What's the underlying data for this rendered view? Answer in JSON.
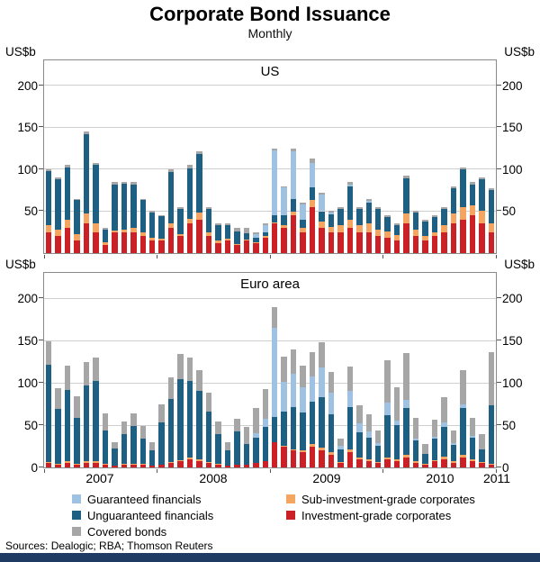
{
  "title": "Corporate Bond Issuance",
  "subtitle": "Monthly",
  "axis_unit": "US$b",
  "source_note": "Sources: Dealogic; RBA; Thomson Reuters",
  "x_tick_labels": [
    "2007",
    "2008",
    "2009",
    "2010",
    "2011"
  ],
  "colors": {
    "guaranteed_financials": "#9fc1e2",
    "unguaranteed_financials": "#1d6083",
    "covered_bonds": "#a6a6a6",
    "sub_investment_grade": "#f5a55f",
    "investment_grade": "#cb2026",
    "footer_bar": "#1f3a63"
  },
  "legend": [
    {
      "label": "Guaranteed financials",
      "color": "#9fc1e2"
    },
    {
      "label": "Unguaranteed financials",
      "color": "#1d6083"
    },
    {
      "label": "Covered bonds",
      "color": "#a6a6a6"
    },
    {
      "label": "Sub-investment-grade corporates",
      "color": "#f5a55f"
    },
    {
      "label": "Investment-grade corporates",
      "color": "#cb2026"
    }
  ],
  "chart_data": [
    {
      "type": "bar",
      "stacked": true,
      "title": "US",
      "ylabel": "US$b",
      "ylim": [
        0,
        230
      ],
      "yticks": [
        50,
        100,
        150,
        200
      ],
      "grid": true,
      "x_unit": "month",
      "x_start": "2007-01",
      "x_end": "2010-12",
      "series": [
        {
          "name": "Investment-grade corporates",
          "color": "#cb2026",
          "values": [
            25,
            20,
            30,
            15,
            35,
            25,
            10,
            25,
            25,
            25,
            20,
            15,
            15,
            30,
            20,
            35,
            40,
            20,
            12,
            15,
            10,
            15,
            12,
            18,
            35,
            30,
            45,
            25,
            55,
            30,
            25,
            25,
            30,
            25,
            25,
            20,
            18,
            15,
            35,
            20,
            15,
            20,
            25,
            35,
            40,
            45,
            35,
            25
          ]
        },
        {
          "name": "Sub-investment-grade corporates",
          "color": "#f5a55f",
          "values": [
            8,
            8,
            10,
            8,
            12,
            10,
            3,
            2,
            3,
            5,
            5,
            3,
            2,
            5,
            3,
            6,
            8,
            5,
            3,
            2,
            1,
            1,
            1,
            2,
            2,
            3,
            4,
            5,
            8,
            8,
            6,
            8,
            10,
            8,
            10,
            8,
            8,
            6,
            12,
            8,
            5,
            5,
            8,
            12,
            15,
            12,
            15,
            10
          ]
        },
        {
          "name": "Unguaranteed financials",
          "color": "#1d6083",
          "values": [
            65,
            60,
            62,
            40,
            95,
            70,
            15,
            55,
            55,
            52,
            38,
            30,
            27,
            62,
            30,
            60,
            70,
            28,
            18,
            16,
            15,
            8,
            5,
            5,
            8,
            12,
            15,
            10,
            15,
            12,
            15,
            20,
            40,
            20,
            25,
            25,
            17,
            12,
            42,
            20,
            18,
            18,
            20,
            30,
            45,
            25,
            38,
            40
          ]
        },
        {
          "name": "Guaranteed financials",
          "color": "#9fc1e2",
          "values": [
            0,
            0,
            0,
            0,
            0,
            0,
            0,
            0,
            0,
            0,
            0,
            0,
            0,
            0,
            0,
            0,
            0,
            0,
            0,
            0,
            0,
            0,
            5,
            8,
            78,
            33,
            58,
            18,
            30,
            20,
            2,
            0,
            2,
            0,
            2,
            0,
            0,
            0,
            0,
            0,
            0,
            0,
            0,
            0,
            0,
            0,
            0,
            0
          ]
        },
        {
          "name": "Covered bonds",
          "color": "#a6a6a6",
          "values": [
            2,
            2,
            3,
            2,
            3,
            3,
            2,
            3,
            2,
            3,
            2,
            2,
            1,
            3,
            2,
            4,
            4,
            2,
            2,
            2,
            4,
            6,
            2,
            2,
            2,
            2,
            3,
            2,
            5,
            2,
            2,
            2,
            3,
            2,
            3,
            2,
            2,
            2,
            3,
            2,
            2,
            2,
            2,
            3,
            2,
            3,
            2,
            2
          ]
        }
      ]
    },
    {
      "type": "bar",
      "stacked": true,
      "title": "Euro area",
      "ylabel": "US$b",
      "ylim": [
        0,
        230
      ],
      "yticks": [
        0,
        50,
        100,
        150,
        200
      ],
      "grid": true,
      "x_unit": "month",
      "x_start": "2007-01",
      "x_end": "2010-12",
      "series": [
        {
          "name": "Investment-grade corporates",
          "color": "#cb2026",
          "values": [
            5,
            3,
            5,
            3,
            5,
            5,
            3,
            2,
            3,
            3,
            3,
            2,
            3,
            5,
            8,
            10,
            8,
            5,
            3,
            2,
            3,
            3,
            5,
            8,
            30,
            25,
            20,
            18,
            25,
            20,
            15,
            5,
            18,
            10,
            8,
            5,
            10,
            8,
            12,
            5,
            3,
            8,
            10,
            5,
            12,
            8,
            5,
            3
          ]
        },
        {
          "name": "Sub-investment-grade corporates",
          "color": "#f5a55f",
          "values": [
            1,
            1,
            2,
            1,
            2,
            2,
            1,
            0,
            1,
            1,
            1,
            0,
            0,
            1,
            1,
            2,
            2,
            1,
            1,
            0,
            0,
            0,
            0,
            0,
            0,
            1,
            1,
            2,
            3,
            3,
            3,
            1,
            3,
            2,
            2,
            1,
            2,
            2,
            3,
            2,
            1,
            1,
            3,
            2,
            3,
            2,
            1,
            1
          ]
        },
        {
          "name": "Unguaranteed financials",
          "color": "#1d6083",
          "values": [
            115,
            65,
            85,
            55,
            90,
            95,
            40,
            20,
            35,
            45,
            30,
            18,
            50,
            75,
            95,
            90,
            80,
            60,
            35,
            18,
            40,
            25,
            30,
            40,
            30,
            40,
            50,
            45,
            50,
            60,
            45,
            15,
            50,
            30,
            25,
            20,
            50,
            40,
            55,
            25,
            12,
            25,
            35,
            20,
            55,
            25,
            15,
            70
          ]
        },
        {
          "name": "Guaranteed financials",
          "color": "#9fc1e2",
          "values": [
            0,
            0,
            0,
            0,
            0,
            0,
            0,
            0,
            0,
            0,
            0,
            0,
            0,
            0,
            0,
            0,
            0,
            0,
            0,
            0,
            0,
            0,
            5,
            10,
            105,
            35,
            40,
            30,
            30,
            35,
            25,
            5,
            20,
            10,
            8,
            3,
            15,
            5,
            10,
            2,
            0,
            2,
            5,
            2,
            5,
            2,
            0,
            0
          ]
        },
        {
          "name": "Covered bonds",
          "color": "#a6a6a6",
          "values": [
            28,
            25,
            28,
            25,
            28,
            28,
            20,
            8,
            15,
            15,
            15,
            10,
            22,
            25,
            30,
            28,
            25,
            22,
            15,
            10,
            15,
            20,
            30,
            35,
            25,
            30,
            28,
            25,
            28,
            30,
            25,
            8,
            28,
            22,
            20,
            15,
            50,
            40,
            55,
            25,
            12,
            20,
            30,
            15,
            40,
            22,
            18,
            62
          ]
        }
      ]
    }
  ]
}
